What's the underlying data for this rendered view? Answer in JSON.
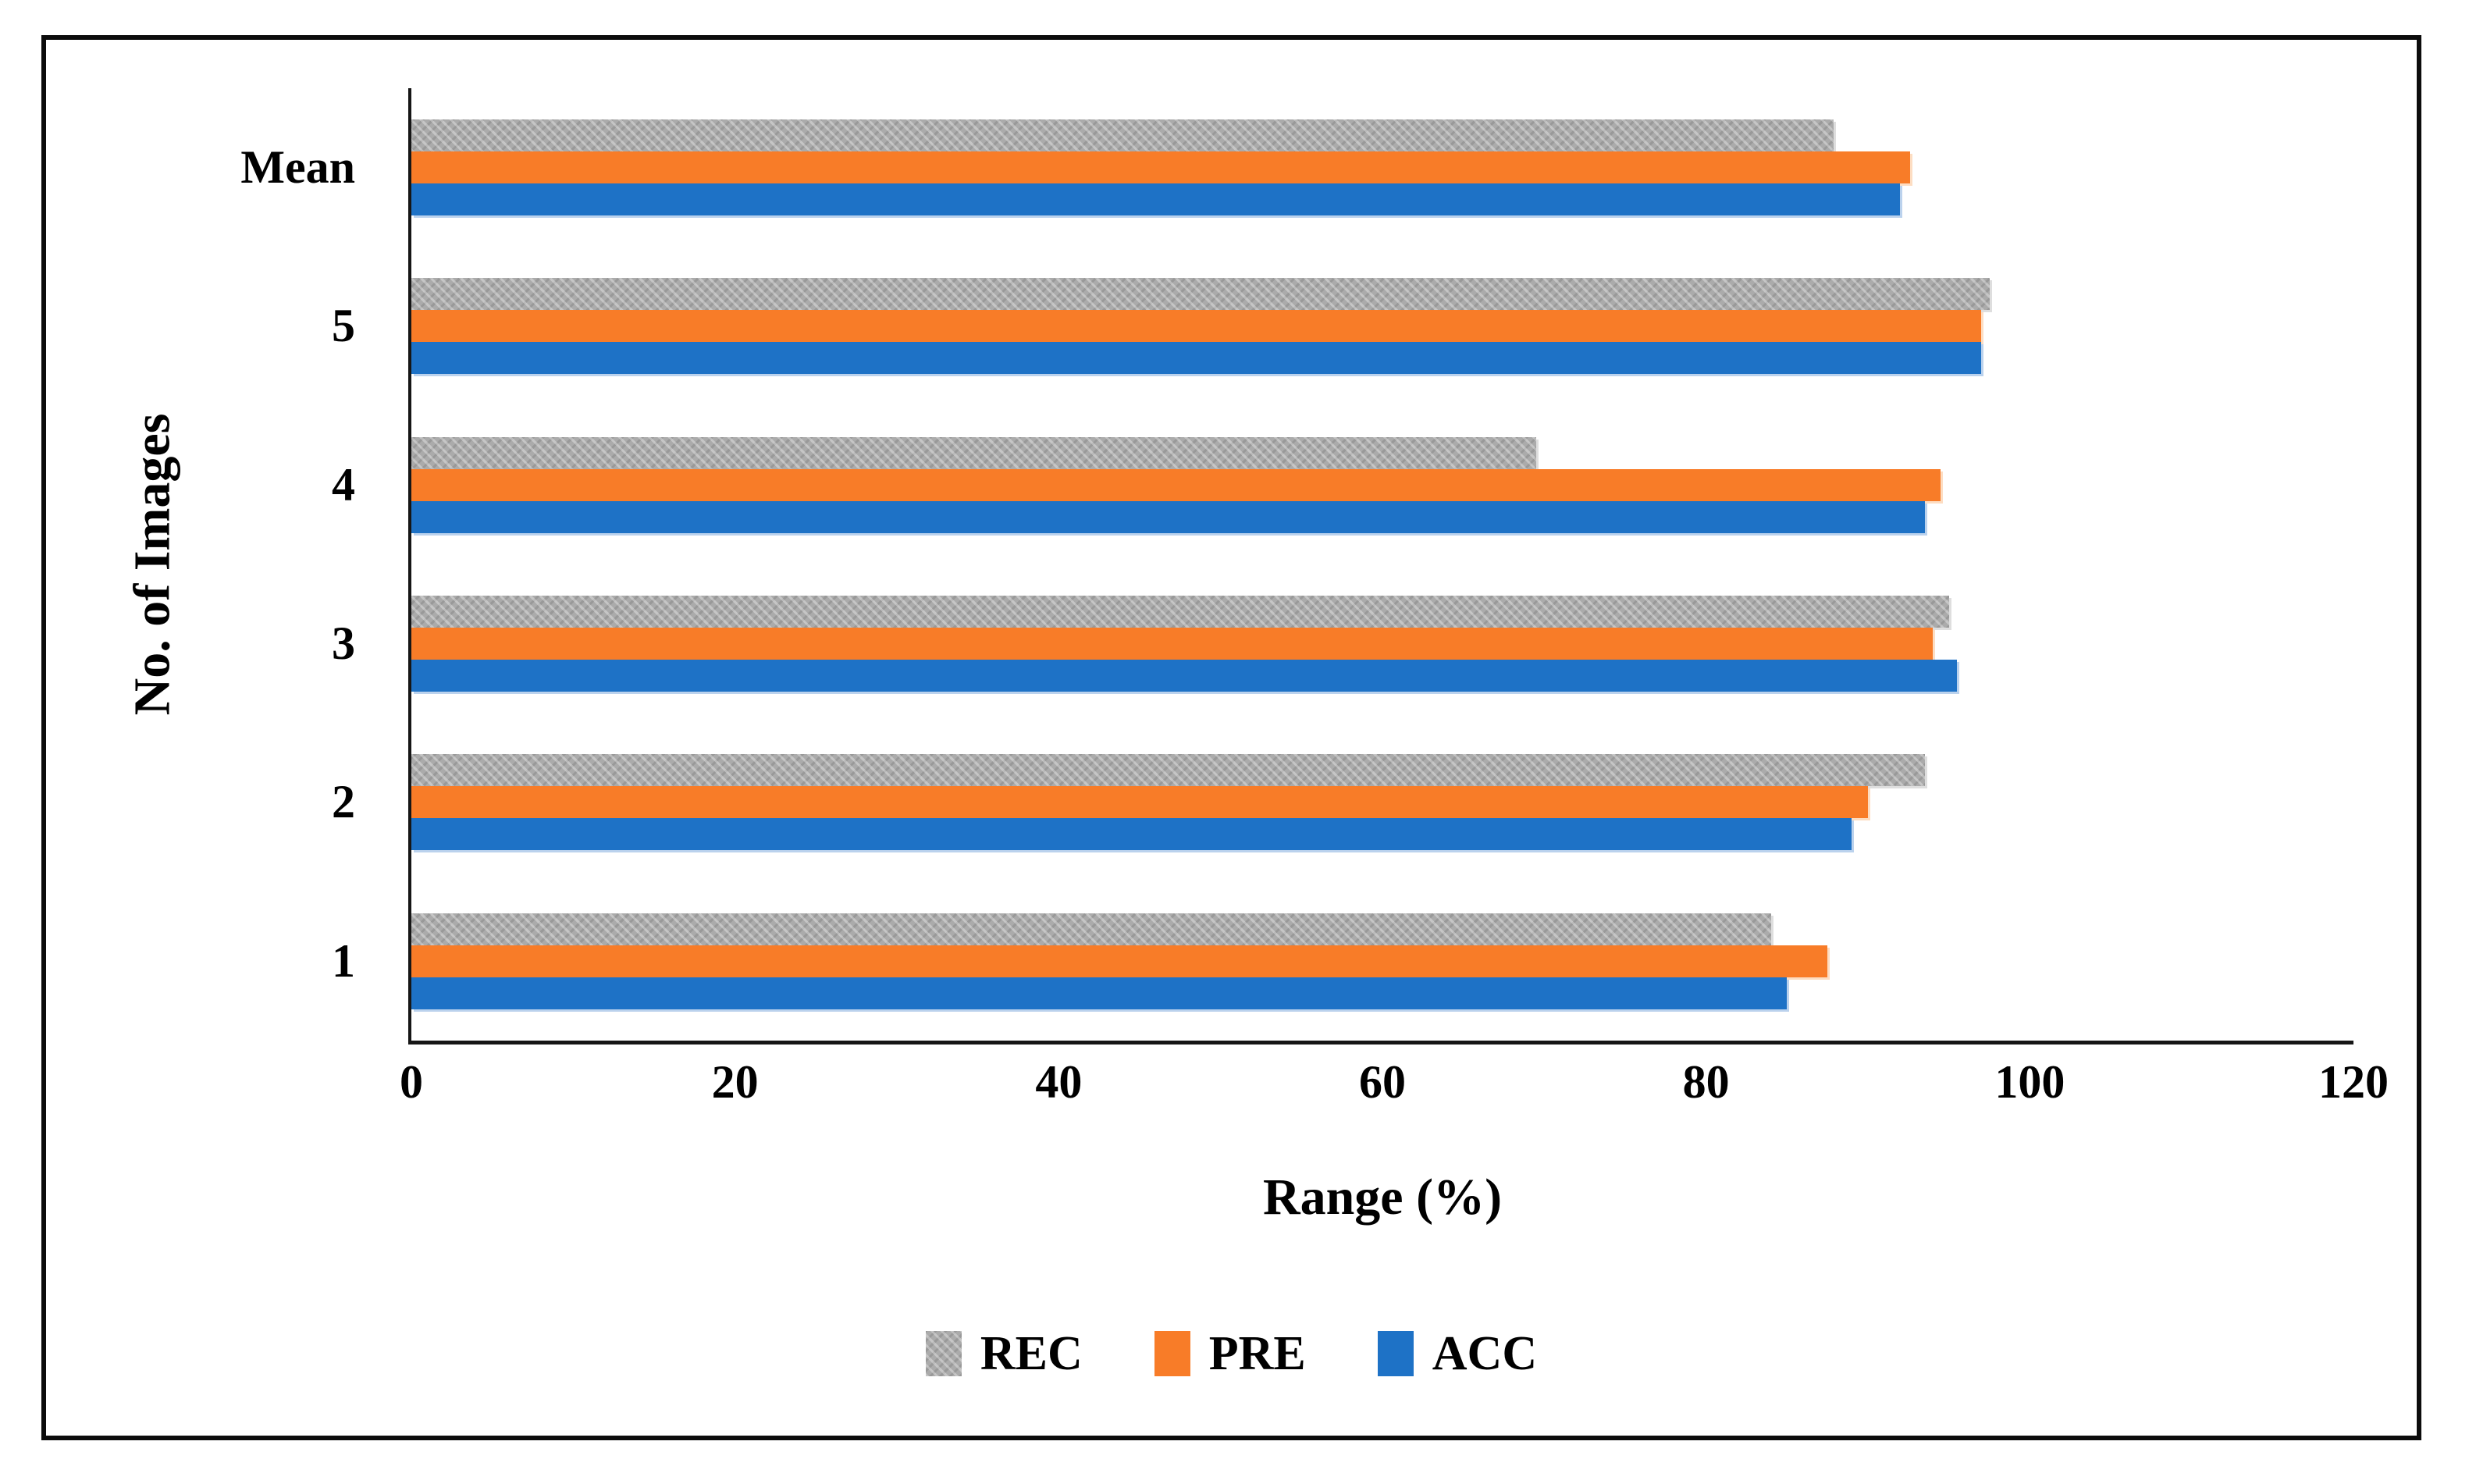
{
  "chart_data": {
    "type": "bar",
    "orientation": "horizontal",
    "title": "",
    "xlabel": "Range (%)",
    "ylabel": "No. of Images",
    "xlim": [
      0,
      120
    ],
    "xticks": [
      0,
      20,
      40,
      60,
      80,
      100,
      120
    ],
    "grid": false,
    "categories_top_to_bottom": [
      "Mean",
      "5",
      "4",
      "3",
      "2",
      "1"
    ],
    "series": [
      {
        "name": "REC",
        "color": "#ababab",
        "pattern": "woven",
        "values": [
          87.9,
          97.5,
          69.5,
          95.0,
          93.5,
          84.0
        ]
      },
      {
        "name": "PRE",
        "color": "#f87c28",
        "pattern": "solid",
        "values": [
          92.6,
          97.0,
          94.5,
          94.0,
          90.0,
          87.5
        ]
      },
      {
        "name": "ACC",
        "color": "#1e72c6",
        "pattern": "solid",
        "values": [
          92.0,
          97.0,
          93.5,
          95.5,
          89.0,
          85.0
        ]
      }
    ],
    "legend": {
      "position": "bottom-center",
      "entries": [
        "REC",
        "PRE",
        "ACC"
      ]
    },
    "frame_color": "#0c0c0c",
    "axis_color": "#161616"
  }
}
